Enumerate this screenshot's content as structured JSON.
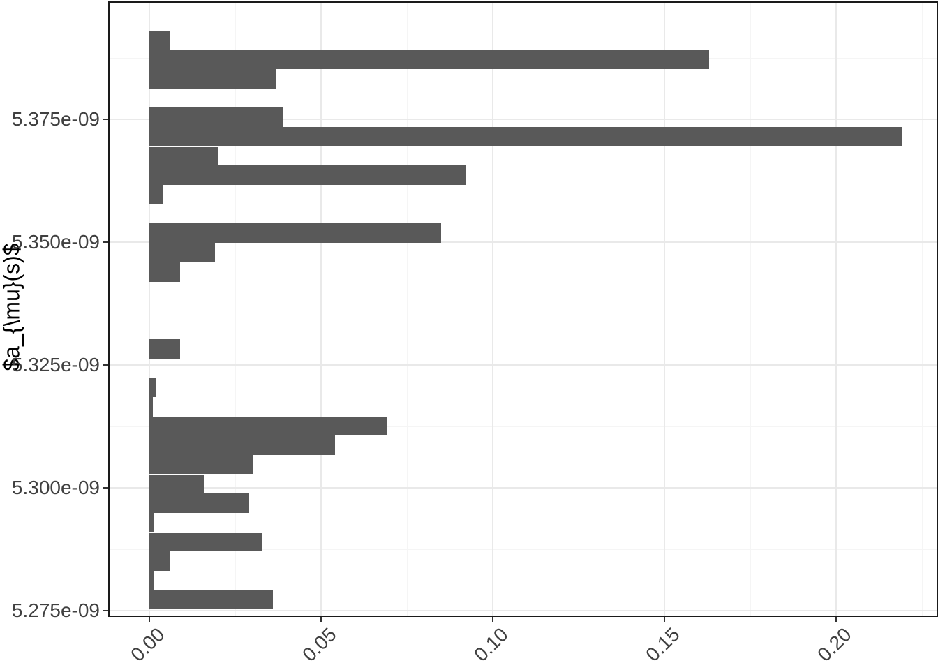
{
  "chart_data": {
    "type": "bar",
    "orientation": "horizontal",
    "title": "",
    "xlabel": "",
    "ylabel": "$a_{\\mu}(s)$",
    "bar_color": "#595959",
    "panel_border_color": "#1a1a1a",
    "grid_major_color": "#e9e9e9",
    "grid_minor_color": "#f5f5f5",
    "axis_text_color": "#404040",
    "tick_mark_color": "#333333",
    "legend": "none",
    "x_axis": {
      "tick_labels": [
        "0.00",
        "0.05",
        "0.10",
        "0.15",
        "0.20"
      ],
      "tick_values": [
        0.0,
        0.05,
        0.1,
        0.15,
        0.2
      ],
      "range": [
        -0.0116,
        0.2292
      ],
      "label_angle_deg": 45
    },
    "y_axis": {
      "tick_labels": [
        "5.375e-09",
        "5.350e-09",
        "5.325e-09",
        "5.300e-09",
        "5.275e-09"
      ],
      "tick_values": [
        5.375e-09,
        5.35e-09,
        5.325e-09,
        5.3e-09,
        5.275e-09
      ],
      "range": [
        5.274e-09,
        5.3988e-09
      ]
    },
    "bins": [
      {
        "y_center": 5.3912e-09,
        "value": 0.006
      },
      {
        "y_center": 5.3873e-09,
        "value": 0.163
      },
      {
        "y_center": 5.3833e-09,
        "value": 0.037
      },
      {
        "y_center": 5.3794e-09,
        "value": 0.0
      },
      {
        "y_center": 5.3755e-09,
        "value": 0.039
      },
      {
        "y_center": 5.3716e-09,
        "value": 0.219
      },
      {
        "y_center": 5.3676e-09,
        "value": 0.02
      },
      {
        "y_center": 5.3637e-09,
        "value": 0.092
      },
      {
        "y_center": 5.3598e-09,
        "value": 0.004
      },
      {
        "y_center": 5.3558e-09,
        "value": 0.0
      },
      {
        "y_center": 5.3519e-09,
        "value": 0.085
      },
      {
        "y_center": 5.348e-09,
        "value": 0.019
      },
      {
        "y_center": 5.344e-09,
        "value": 0.009
      },
      {
        "y_center": 5.3401e-09,
        "value": 0.0
      },
      {
        "y_center": 5.3362e-09,
        "value": 0.0
      },
      {
        "y_center": 5.3323e-09,
        "value": 0.0
      },
      {
        "y_center": 5.3283e-09,
        "value": 0.009
      },
      {
        "y_center": 5.3244e-09,
        "value": 0.0
      },
      {
        "y_center": 5.3205e-09,
        "value": 0.002
      },
      {
        "y_center": 5.3165e-09,
        "value": 0.001
      },
      {
        "y_center": 5.3126e-09,
        "value": 0.069
      },
      {
        "y_center": 5.3087e-09,
        "value": 0.054
      },
      {
        "y_center": 5.3048e-09,
        "value": 0.03
      },
      {
        "y_center": 5.3008e-09,
        "value": 0.016
      },
      {
        "y_center": 5.2969e-09,
        "value": 0.029
      },
      {
        "y_center": 5.293e-09,
        "value": 0.0015
      },
      {
        "y_center": 5.289e-09,
        "value": 0.033
      },
      {
        "y_center": 5.2851e-09,
        "value": 0.006
      },
      {
        "y_center": 5.2812e-09,
        "value": 0.0015
      },
      {
        "y_center": 5.2773e-09,
        "value": 0.036
      }
    ]
  }
}
